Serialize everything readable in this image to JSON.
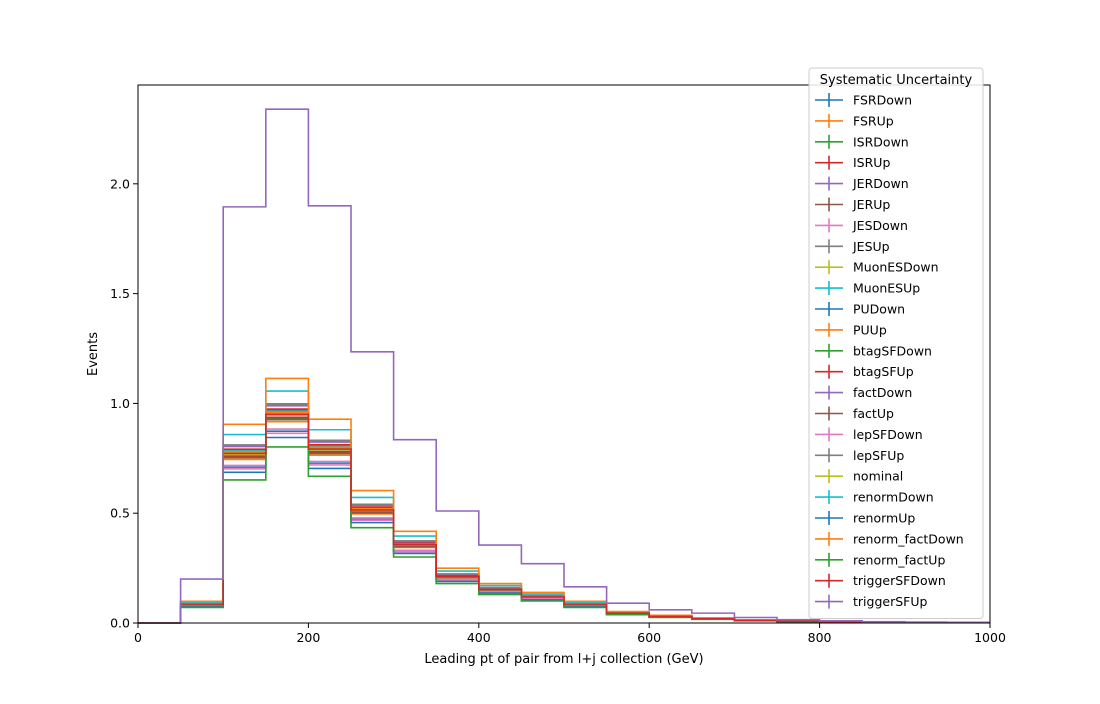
{
  "chart_data": {
    "type": "histogram-step",
    "xlabel": "Leading pt of pair from l+j collection (GeV)",
    "ylabel": "Events",
    "xlim": [
      0,
      1000
    ],
    "ylim": [
      0,
      2.45
    ],
    "xticks": [
      0,
      200,
      400,
      600,
      800,
      1000
    ],
    "yticks": [
      0.0,
      0.5,
      1.0,
      1.5,
      2.0
    ],
    "grid": false,
    "legend_title": "Systematic Uncertainty",
    "legend_placement": "top-right",
    "bin_edges": [
      0,
      50,
      100,
      150,
      200,
      250,
      300,
      350,
      400,
      450,
      500,
      550,
      600,
      650,
      700,
      750,
      800,
      850,
      900,
      950,
      1000
    ],
    "base_shape": [
      0,
      0.085,
      0.78,
      0.96,
      0.8,
      0.52,
      0.36,
      0.215,
      0.155,
      0.12,
      0.085,
      0.045,
      0.03,
      0.02,
      0.012,
      0.008,
      0.006,
      0.004,
      0.003,
      0.002
    ],
    "series": [
      {
        "name": "FSRDown",
        "color": "#1f77b4",
        "scale": 0.91
      },
      {
        "name": "FSRUp",
        "color": "#ff7f0e",
        "scale": 0.955
      },
      {
        "name": "ISRDown",
        "color": "#2ca02c",
        "scale": 0.97
      },
      {
        "name": "ISRUp",
        "color": "#d62728",
        "scale": 0.975
      },
      {
        "name": "JERDown",
        "color": "#9467bd",
        "scale": 0.995
      },
      {
        "name": "JERUp",
        "color": "#8c564b",
        "scale": 1.01
      },
      {
        "name": "JESDown",
        "color": "#e377c2",
        "scale": 0.9
      },
      {
        "name": "JESUp",
        "color": "#7f7f7f",
        "scale": 1.035
      },
      {
        "name": "MuonESDown",
        "color": "#bcbd22",
        "scale": 0.995
      },
      {
        "name": "MuonESUp",
        "color": "#17becf",
        "scale": 1.005
      },
      {
        "name": "PUDown",
        "color": "#1f77b4",
        "scale": 0.985
      },
      {
        "name": "PUUp",
        "color": "#ff7f0e",
        "scale": 1.0
      },
      {
        "name": "btagSFDown",
        "color": "#2ca02c",
        "scale": 0.965
      },
      {
        "name": "btagSFUp",
        "color": "#d62728",
        "scale": 1.015
      },
      {
        "name": "factDown",
        "color": "#9467bd",
        "scale": 1.03
      },
      {
        "name": "factUp",
        "color": "#8c564b",
        "scale": 0.965
      },
      {
        "name": "lepSFDown",
        "color": "#e377c2",
        "scale": 0.92
      },
      {
        "name": "lepSFUp",
        "color": "#7f7f7f",
        "scale": 1.04
      },
      {
        "name": "nominal",
        "color": "#bcbd22",
        "scale": 0.985
      },
      {
        "name": "renormDown",
        "color": "#17becf",
        "scale": 1.1
      },
      {
        "name": "renormUp",
        "color": "#1f77b4",
        "scale": 0.88
      },
      {
        "name": "renorm_factDown",
        "color": "#ff7f0e",
        "scale": 1.16
      },
      {
        "name": "renorm_factUp",
        "color": "#2ca02c",
        "scale": 0.835
      },
      {
        "name": "triggerSFDown",
        "color": "#d62728",
        "scale": 0.99
      },
      {
        "name": "triggerSFUp",
        "color": "#9467bd",
        "values": [
          0,
          0.2,
          1.895,
          2.34,
          1.9,
          1.235,
          0.835,
          0.51,
          0.355,
          0.27,
          0.165,
          0.09,
          0.06,
          0.045,
          0.025,
          0.015,
          0.01,
          0.006,
          0.004,
          0.003
        ]
      }
    ]
  }
}
